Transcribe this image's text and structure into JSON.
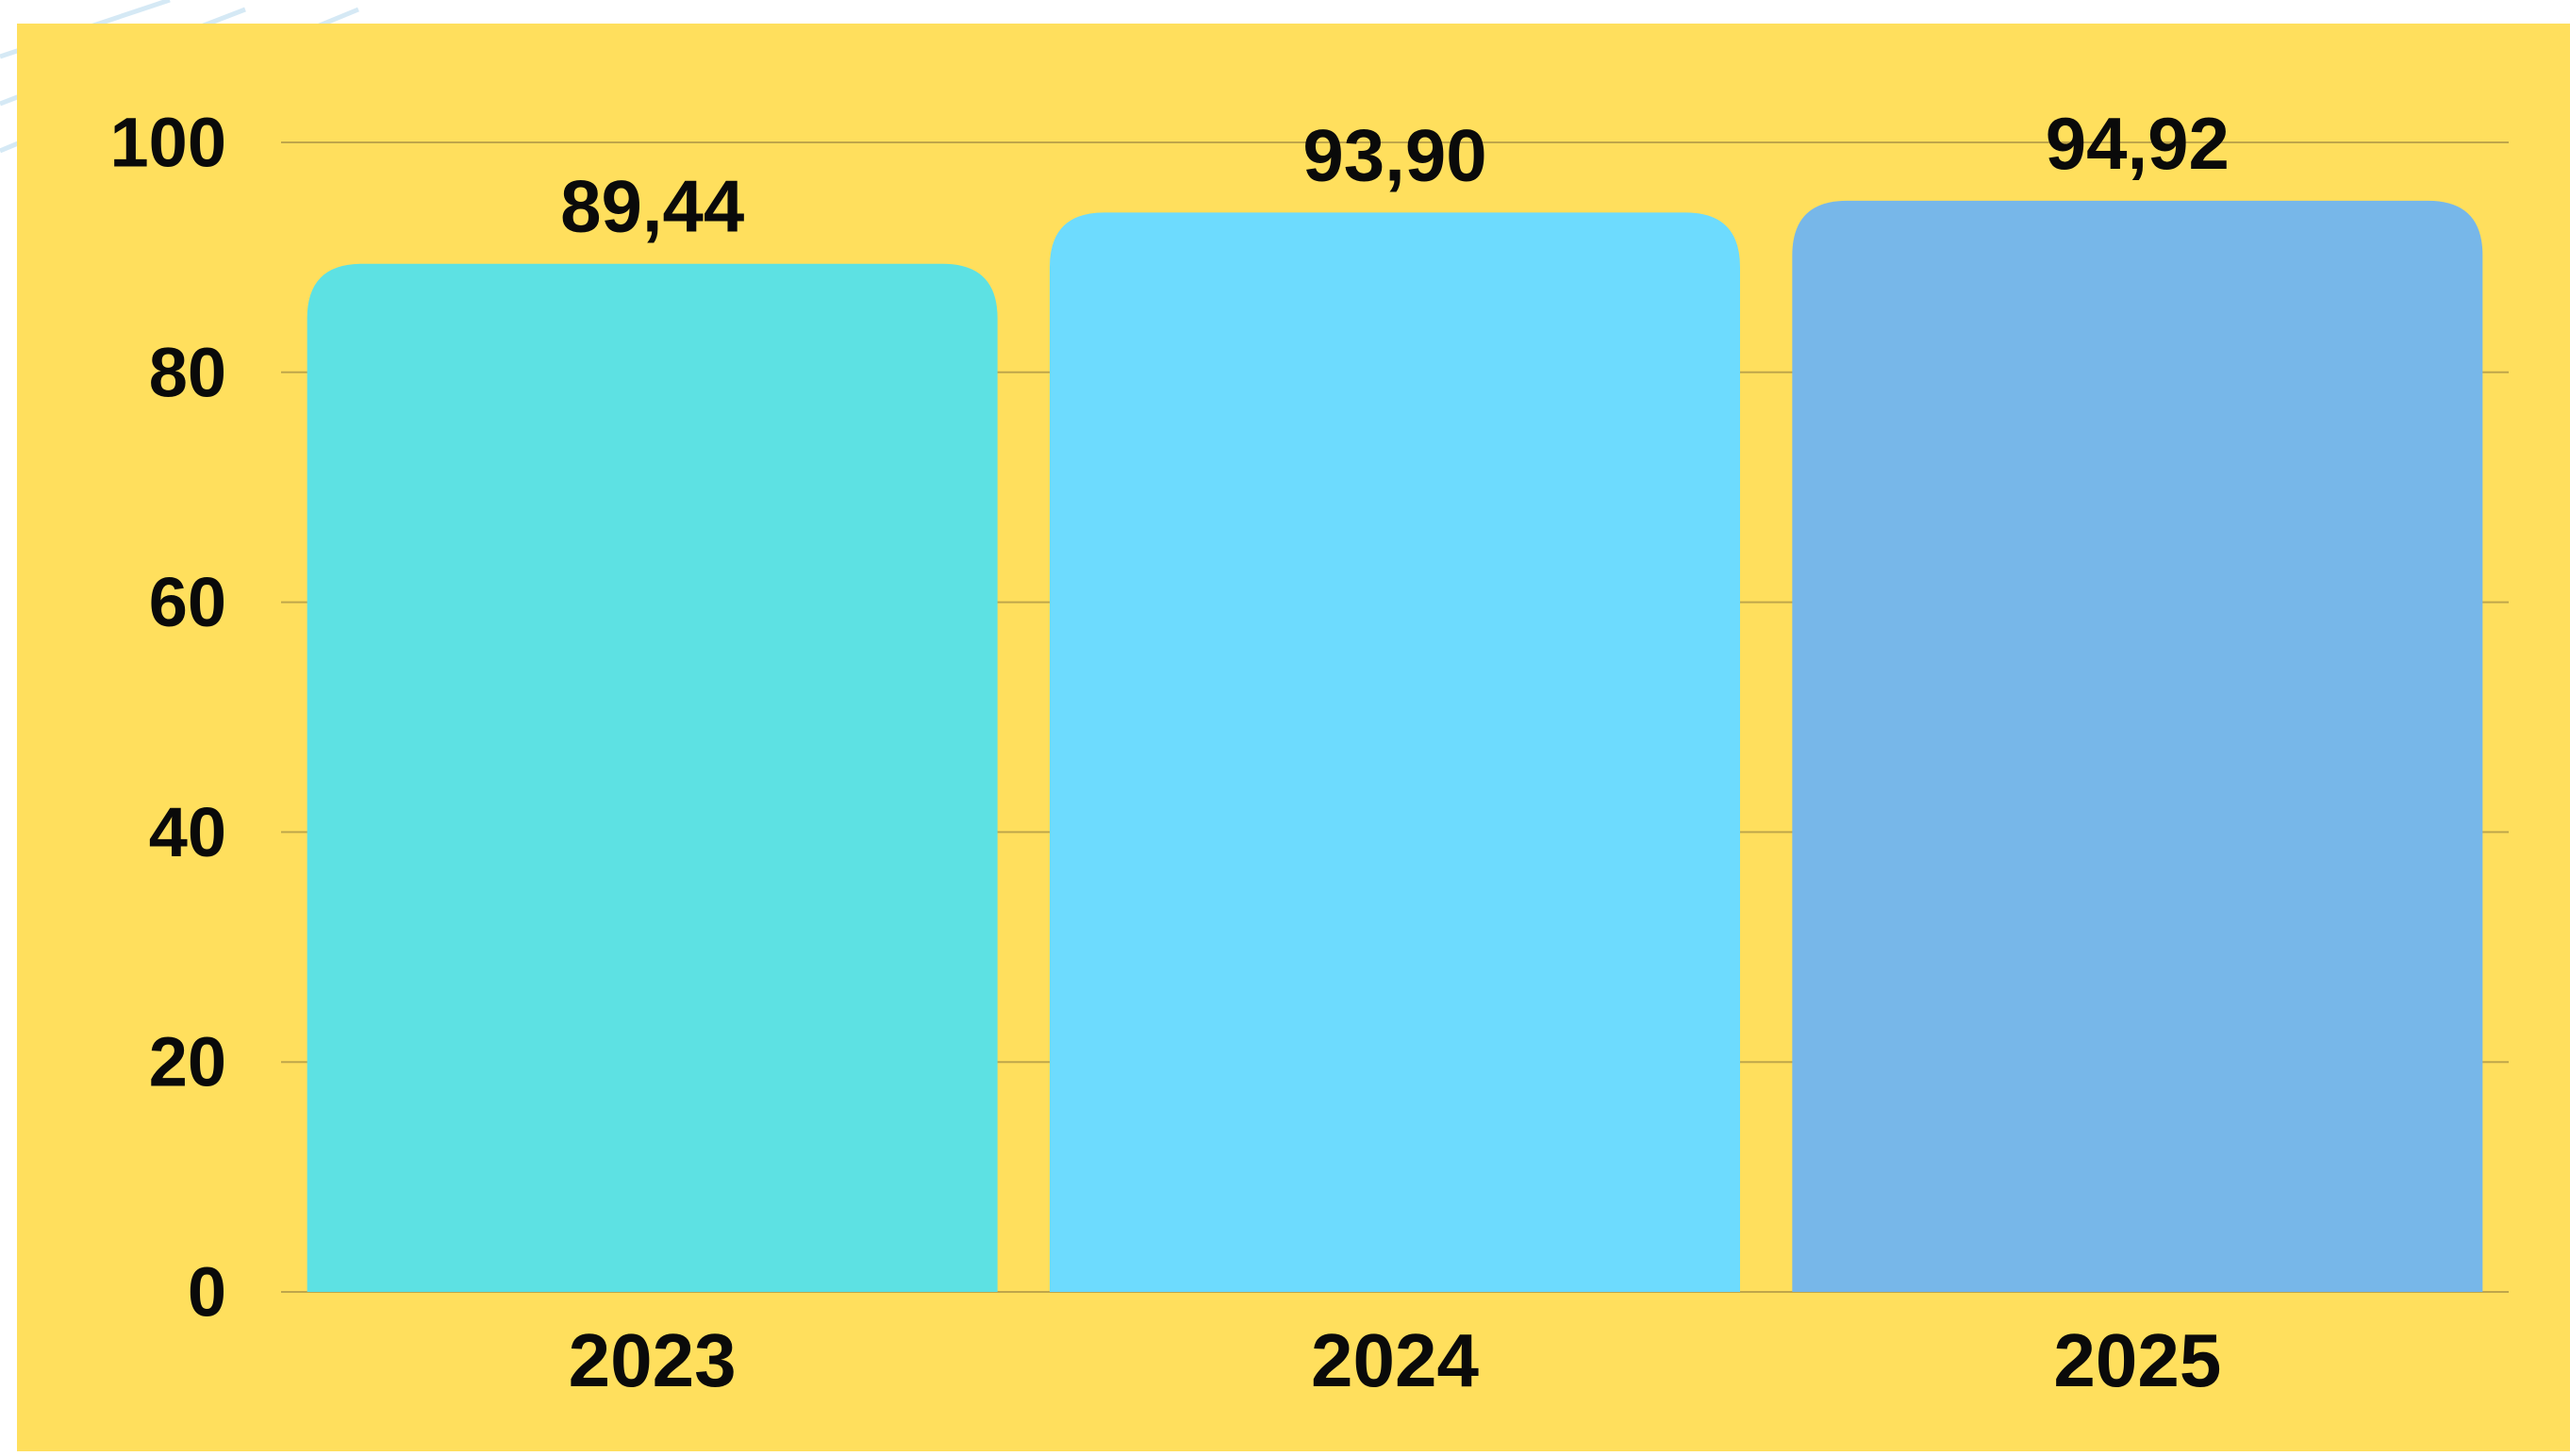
{
  "chart_data": {
    "type": "bar",
    "title": "",
    "xlabel": "",
    "ylabel": "",
    "categories": [
      "2023",
      "2024",
      "2025"
    ],
    "values": [
      89.44,
      93.9,
      94.92
    ],
    "value_labels": [
      "89,44",
      "93,90",
      "94,92"
    ],
    "ylim": [
      0,
      100
    ],
    "yticks": [
      0,
      20,
      40,
      60,
      80,
      100
    ],
    "ytick_labels": [
      "0",
      "20",
      "40",
      "60",
      "80",
      "100"
    ],
    "grid": true,
    "legend": "none",
    "bar_colors": [
      "#5DE1E3",
      "#6DDBFE",
      "#77B7E9"
    ]
  },
  "colors": {
    "background": "#FFDF5D",
    "grid": "#BFA64B",
    "text": "#0A0A0A",
    "decoration": "#D5E9F5"
  }
}
